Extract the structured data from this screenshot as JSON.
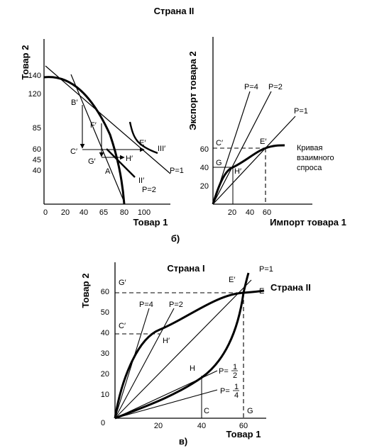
{
  "title": "Страна II",
  "panel_b": {
    "caption": "б)",
    "left": {
      "y_label": "Товар 2",
      "x_label": "Товар 1",
      "y_ticks": [
        "140",
        "120",
        "85",
        "60",
        "45",
        "40"
      ],
      "x_ticks": [
        "0",
        "20",
        "40",
        "65",
        "80",
        "100"
      ],
      "x_ticks_plain": [
        "20",
        "40",
        "65",
        "80",
        "100"
      ],
      "points": {
        "B": "B′",
        "F": "F′",
        "E": "E′",
        "C": "C′",
        "G": "G′",
        "H": "H′",
        "A": "A"
      },
      "curves": {
        "III": "III′",
        "II": "II′",
        "p1": "P=1",
        "p2": "P=2"
      }
    },
    "right": {
      "y_label": "Экспорт товара 2",
      "x_label": "Импорт товара 1",
      "y_ticks": [
        "60",
        "40",
        "20"
      ],
      "x_ticks": [
        "20",
        "40",
        "60"
      ],
      "rays": {
        "p4": "P=4",
        "p2": "P=2",
        "p1": "P=1"
      },
      "points": {
        "C": "C′",
        "E": "E′",
        "G": "G",
        "H": "H′"
      },
      "offer_curve_label": [
        "Кривая",
        "взаимного",
        "спроса"
      ]
    }
  },
  "panel_c": {
    "caption": "в)",
    "y_label": "Товар 2",
    "x_label": "Товар 1",
    "y_ticks": [
      "60",
      "50",
      "40",
      "30",
      "20",
      "10"
    ],
    "x_ticks": [
      "0",
      "20",
      "40",
      "60"
    ],
    "x_ticks_plain": [
      "20",
      "40",
      "60"
    ],
    "country_1": "Страна I",
    "country_2": "Страна II",
    "rays": {
      "p1": "P=1",
      "p4": "P=4",
      "p2": "P=2",
      "p_half": "P=",
      "p_quarter": "P="
    },
    "fractions": {
      "half_num": "1",
      "half_den": "2",
      "quarter_num": "1",
      "quarter_den": "4"
    },
    "points": {
      "G": "G′",
      "C": "C′",
      "E_prime": "E′",
      "E": "E",
      "H_prime": "H′",
      "H": "H",
      "C_axis": "C",
      "G_axis": "G"
    }
  }
}
